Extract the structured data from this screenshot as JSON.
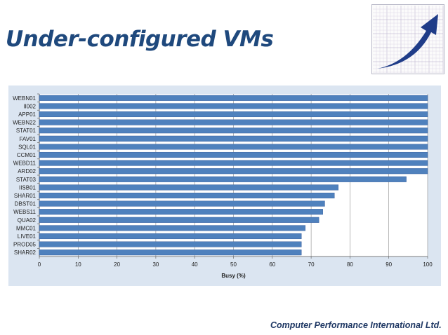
{
  "slide": {
    "title": "Under-configured VMs",
    "footer": "Computer Performance International Ltd."
  },
  "logo": {
    "name": "rising-arrow-grid-logo",
    "arrow_color": "#1f3c88"
  },
  "colors": {
    "bar": "#4f81bd",
    "bar_edge": "#2f5597",
    "panel": "#dbe5f1",
    "grid": "#8a8a8a"
  },
  "chart_data": {
    "type": "bar",
    "orientation": "horizontal",
    "categories": [
      "WEBN01",
      "II002",
      "APP01",
      "WEBN22",
      "STAT01",
      "FAV01",
      "SQL01",
      "CCM01",
      "WEBD11",
      "ARD02",
      "STAT03",
      "IISB01",
      "SHAR01",
      "DBST01",
      "WEBS11",
      "QUA02",
      "MMC01",
      "LIVE01",
      "PROD05",
      "SHAR02"
    ],
    "values": [
      100,
      100,
      100,
      100,
      100,
      100,
      100,
      100,
      100,
      100,
      94.5,
      77,
      76,
      73.5,
      73,
      72,
      68.5,
      67.5,
      67.5,
      67.5
    ],
    "xlabel": "Busy (%)",
    "xlim": [
      0,
      100
    ],
    "xticks": [
      0,
      10,
      20,
      30,
      40,
      50,
      60,
      70,
      80,
      90,
      100
    ],
    "grid": "vertical",
    "legend": "none"
  }
}
